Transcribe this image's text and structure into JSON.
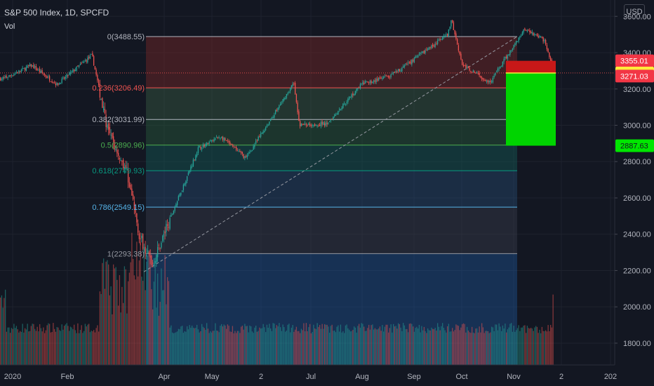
{
  "header": {
    "title": "S&P 500 Index, 1D, SPCFD",
    "subtitle": "Vol",
    "currency": "USD"
  },
  "colors": {
    "bg": "#131722",
    "grid": "#1e222d",
    "up": "#26a69a",
    "down": "#ef5350",
    "axis_text": "#b2b5be"
  },
  "chart_data": {
    "type": "candlestick",
    "title": "S&P 500 Index, 1D, SPCFD",
    "y_axis": {
      "min": 1680,
      "max": 3690,
      "ticks": [
        1800,
        2000,
        2200,
        2400,
        2600,
        2800,
        3000,
        3200,
        3400,
        3600
      ]
    },
    "x_axis": {
      "labels": [
        "2020",
        "Feb",
        "Apr",
        "May",
        "2",
        "Jul",
        "Aug",
        "Sep",
        "Oct",
        "Nov",
        "2",
        "202"
      ]
    },
    "fib_retracement": {
      "levels": [
        {
          "ratio": "0",
          "price": 3488.55,
          "label": "0(3488.55)",
          "color": "#b2b5be"
        },
        {
          "ratio": "0.236",
          "price": 3206.49,
          "label": "0.236(3206.49)",
          "color": "#ef5350"
        },
        {
          "ratio": "0.382",
          "price": 3031.99,
          "label": "0.382(3031.99)",
          "color": "#b2b5be"
        },
        {
          "ratio": "0.5",
          "price": 2890.96,
          "label": "0.5(2890.96)",
          "color": "#4caf50"
        },
        {
          "ratio": "0.618",
          "price": 2749.93,
          "label": "0.618(2749.93)",
          "color": "#089981"
        },
        {
          "ratio": "0.786",
          "price": 2549.15,
          "label": "0.786(2549.15)",
          "color": "#56b4e9"
        },
        {
          "ratio": "1",
          "price": 2293.38,
          "label": "1(2293.38)",
          "color": "#9598a1"
        }
      ]
    },
    "price_labels": [
      {
        "price": 3355.01,
        "label": "3355.01",
        "bg": "#f23645",
        "fg": "#ffffff"
      },
      {
        "price": 3288.24,
        "label": "3288.24",
        "bg": "#ffeb3b",
        "fg": "#131722"
      },
      {
        "price": 3271.03,
        "label": "3271.03",
        "bg": "#f23645",
        "fg": "#ffffff"
      },
      {
        "price": 2887.63,
        "label": "2887.63",
        "bg": "#00e600",
        "fg": "#131722"
      }
    ],
    "position_box": {
      "entry": 3288.24,
      "stop": 3355.01,
      "target": 2887.63
    },
    "trendline": {
      "from": 2193,
      "to": 3488.55
    },
    "current_price": 3271.03,
    "price_series": [
      {
        "date": "2020-01-02",
        "close": 3258
      },
      {
        "date": "2020-01-17",
        "close": 3330
      },
      {
        "date": "2020-01-31",
        "close": 3225
      },
      {
        "date": "2020-02-19",
        "close": 3386
      },
      {
        "date": "2020-02-28",
        "close": 2954
      },
      {
        "date": "2020-03-09",
        "close": 2747
      },
      {
        "date": "2020-03-16",
        "close": 2386
      },
      {
        "date": "2020-03-23",
        "close": 2237
      },
      {
        "date": "2020-04-01",
        "close": 2470
      },
      {
        "date": "2020-04-17",
        "close": 2874
      },
      {
        "date": "2020-04-29",
        "close": 2939
      },
      {
        "date": "2020-05-13",
        "close": 2820
      },
      {
        "date": "2020-06-08",
        "close": 3232
      },
      {
        "date": "2020-06-11",
        "close": 3002
      },
      {
        "date": "2020-06-26",
        "close": 3009
      },
      {
        "date": "2020-07-15",
        "close": 3227
      },
      {
        "date": "2020-07-31",
        "close": 3271
      },
      {
        "date": "2020-08-31",
        "close": 3500
      },
      {
        "date": "2020-09-02",
        "close": 3580
      },
      {
        "date": "2020-09-08",
        "close": 3331
      },
      {
        "date": "2020-09-23",
        "close": 3237
      },
      {
        "date": "2020-10-12",
        "close": 3534
      },
      {
        "date": "2020-10-23",
        "close": 3465
      },
      {
        "date": "2020-10-28",
        "close": 3271
      }
    ]
  }
}
